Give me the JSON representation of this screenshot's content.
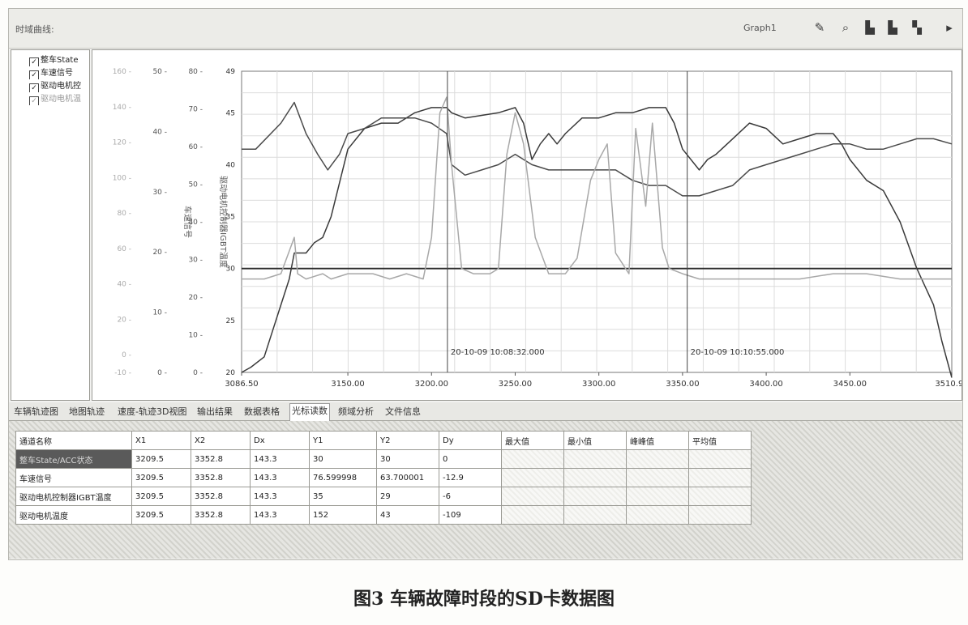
{
  "app": {
    "title": "时域曲线:",
    "graph_label": "Graph1",
    "toolbar_icons": [
      "pen-icon",
      "zoom-icon",
      "export-icon",
      "save-icon",
      "print-icon",
      "next-icon"
    ]
  },
  "legend": {
    "items": [
      {
        "label": "整车State",
        "checked": true
      },
      {
        "label": "车速信号",
        "checked": true
      },
      {
        "label": "驱动电机控",
        "checked": true
      },
      {
        "label": "驱动电机温",
        "checked": true
      }
    ]
  },
  "tabs": [
    {
      "label": "车辆轨迹图",
      "active": false
    },
    {
      "label": "地图轨迹",
      "active": false
    },
    {
      "label": "速度-轨迹3D视图",
      "active": false
    },
    {
      "label": "输出结果",
      "active": false
    },
    {
      "label": "数据表格",
      "active": false
    },
    {
      "label": "光标读数",
      "active": true
    },
    {
      "label": "频域分析",
      "active": false
    },
    {
      "label": "文件信息",
      "active": false
    }
  ],
  "table": {
    "headers": [
      "通道名称",
      "X1",
      "X2",
      "Dx",
      "Y1",
      "Y2",
      "Dy",
      "最大值",
      "最小值",
      "峰峰值",
      "平均值"
    ],
    "rows": [
      [
        "整车State/ACC状态",
        "3209.5",
        "3352.8",
        "143.3",
        "30",
        "30",
        "0",
        "",
        "",
        "",
        ""
      ],
      [
        "车速信号",
        "3209.5",
        "3352.8",
        "143.3",
        "76.599998",
        "63.700001",
        "-12.9",
        "",
        "",
        "",
        ""
      ],
      [
        "驱动电机控制器IGBT温度",
        "3209.5",
        "3352.8",
        "143.3",
        "35",
        "29",
        "-6",
        "",
        "",
        "",
        ""
      ],
      [
        "驱动电机温度",
        "3209.5",
        "3352.8",
        "143.3",
        "152",
        "43",
        "-109",
        "",
        "",
        "",
        ""
      ]
    ]
  },
  "caption": "图3  车辆故障时段的SD卡数据图",
  "chart_data": {
    "type": "line",
    "xlim": [
      3086.5,
      3510.9
    ],
    "x_ticks": [
      "3086.50",
      "3150.00",
      "3200.00",
      "3250.00",
      "3300.00",
      "3350.00",
      "3400.00",
      "3450.00",
      "3510.90"
    ],
    "x_tick_values": [
      3086.5,
      3150,
      3200,
      3250,
      3300,
      3350,
      3400,
      3450,
      3510.9
    ],
    "axes": [
      {
        "ticks": [
          "160",
          "140",
          "120",
          "100",
          "80",
          "60",
          "40",
          "20",
          "0",
          "-10"
        ],
        "range": [
          -10,
          160
        ],
        "label": ""
      },
      {
        "ticks": [
          "50",
          "40",
          "30",
          "20",
          "10",
          "0"
        ],
        "range": [
          0,
          50
        ],
        "label": "车速信号"
      },
      {
        "ticks": [
          "80",
          "70",
          "60",
          "50",
          "40",
          "30",
          "20",
          "10",
          "0"
        ],
        "range": [
          0,
          80
        ],
        "label": "驱动电机控制器IGBT温度"
      },
      {
        "ticks": [
          "49",
          "45",
          "40",
          "35",
          "30",
          "25",
          "20"
        ],
        "range": [
          20,
          49
        ],
        "label": ""
      }
    ],
    "grid": true,
    "cursors": [
      {
        "x": 3209.5,
        "label": "20-10-09 10:08:32.000"
      },
      {
        "x": 3352.8,
        "label": "20-10-09 10:10:55.000"
      }
    ],
    "series": [
      {
        "name": "整车State",
        "color": "#2a2a2a",
        "x": [
          3086.5,
          3510.9
        ],
        "y": [
          30,
          30
        ]
      },
      {
        "name": "车速信号",
        "color": "#3a3a3a",
        "x": [
          3086.5,
          3092,
          3100,
          3105,
          3110,
          3115,
          3118,
          3125,
          3130,
          3135,
          3140,
          3150,
          3160,
          3170,
          3180,
          3190,
          3200,
          3209,
          3212,
          3220,
          3240,
          3250,
          3255,
          3260,
          3265,
          3270,
          3275,
          3280,
          3290,
          3300,
          3310,
          3320,
          3330,
          3340,
          3345,
          3350,
          3360,
          3365,
          3370,
          3380,
          3390,
          3400,
          3410,
          3420,
          3430,
          3440,
          3445,
          3450,
          3460,
          3470,
          3480,
          3490,
          3500,
          3505,
          3510.9
        ],
        "y": [
          20,
          20.5,
          21.5,
          24,
          26.5,
          29,
          31.5,
          31.5,
          32.5,
          33,
          35,
          41.5,
          43.5,
          44,
          44,
          45,
          45.5,
          45.5,
          45,
          44.5,
          45,
          45.5,
          44,
          40.5,
          42,
          43,
          42,
          43,
          44.5,
          44.5,
          45,
          45,
          45.5,
          45.5,
          44,
          41.5,
          39.5,
          40.5,
          41,
          42.5,
          44,
          43.5,
          42,
          42.5,
          43,
          43,
          42,
          40.5,
          38.5,
          37.5,
          34.5,
          30,
          26.5,
          23,
          19.5
        ]
      },
      {
        "name": "驱动电机控制器IGBT温度",
        "color": "#4a4a4a",
        "x": [
          3086.5,
          3095,
          3110,
          3118,
          3125,
          3132,
          3138,
          3145,
          3150,
          3160,
          3170,
          3180,
          3190,
          3200,
          3209,
          3212,
          3220,
          3230,
          3240,
          3250,
          3260,
          3270,
          3280,
          3290,
          3300,
          3310,
          3320,
          3330,
          3340,
          3350,
          3355,
          3360,
          3370,
          3380,
          3390,
          3400,
          3410,
          3420,
          3430,
          3440,
          3450,
          3460,
          3470,
          3480,
          3490,
          3500,
          3510.9
        ],
        "y": [
          41.5,
          41.5,
          44,
          46,
          43,
          41,
          39.5,
          41,
          43,
          43.5,
          44.5,
          44.5,
          44.5,
          44,
          43,
          40,
          39,
          39.5,
          40,
          41,
          40,
          39.5,
          39.5,
          39.5,
          39.5,
          39.5,
          38.5,
          38,
          38,
          37,
          37,
          37,
          37.5,
          38,
          39.5,
          40,
          40.5,
          41,
          41.5,
          42,
          42,
          41.5,
          41.5,
          42,
          42.5,
          42.5,
          42
        ]
      },
      {
        "name": "驱动电机温度",
        "color": "#a8a8a8",
        "x": [
          3086.5,
          3100,
          3110,
          3118,
          3120,
          3125,
          3135,
          3140,
          3150,
          3165,
          3175,
          3185,
          3195,
          3200,
          3205,
          3209,
          3212,
          3218,
          3225,
          3235,
          3240,
          3245,
          3250,
          3255,
          3262,
          3270,
          3280,
          3287,
          3295,
          3300,
          3305,
          3310,
          3318,
          3322,
          3328,
          3332,
          3338,
          3342,
          3350,
          3360,
          3380,
          3400,
          3420,
          3440,
          3460,
          3480,
          3500,
          3510.9
        ],
        "y": [
          29,
          29,
          29.5,
          33,
          29.5,
          29,
          29.5,
          29,
          29.5,
          29.5,
          29,
          29.5,
          29,
          33,
          45,
          46.5,
          40,
          30,
          29.5,
          29.5,
          30,
          41,
          45,
          42,
          33,
          29.5,
          29.5,
          31,
          38.5,
          40.5,
          42,
          31.5,
          29.5,
          43.5,
          36,
          44,
          32,
          30,
          29.5,
          29,
          29,
          29,
          29,
          29.5,
          29.5,
          29,
          29,
          29
        ]
      }
    ]
  }
}
